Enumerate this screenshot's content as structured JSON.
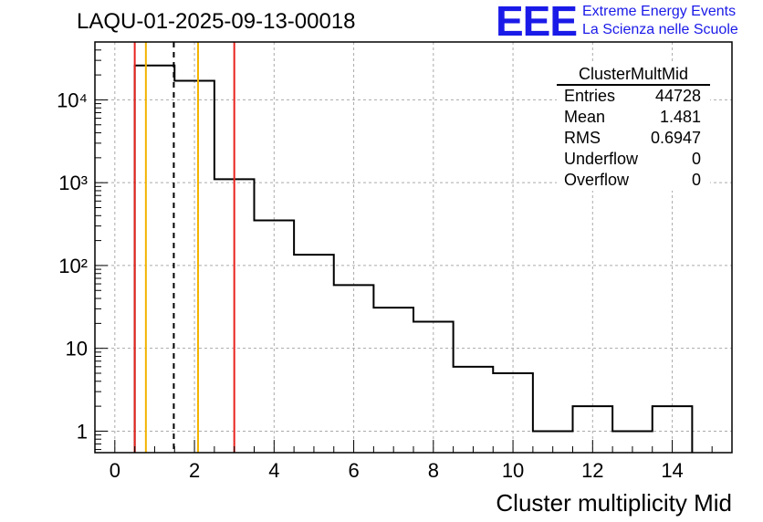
{
  "chart_data": {
    "type": "histogram",
    "title": "LAQU-01-2025-09-13-00018",
    "xlabel": "Cluster multiplicity Mid",
    "ylabel": "",
    "xlim": [
      -0.5,
      15.5
    ],
    "ylim": [
      0.55,
      50000
    ],
    "yscale": "log",
    "grid": true,
    "x_ticks": [
      0,
      2,
      4,
      6,
      8,
      10,
      12,
      14
    ],
    "x_tick_labels": [
      "0",
      "2",
      "4",
      "6",
      "8",
      "10",
      "12",
      "14"
    ],
    "y_ticks": [
      1,
      10,
      100,
      1000,
      10000
    ],
    "y_tick_labels": [
      "1",
      "10",
      "10²",
      "10³",
      "10⁴"
    ],
    "bins": [
      {
        "lo": 0.5,
        "hi": 1.5,
        "count": 26000
      },
      {
        "lo": 1.5,
        "hi": 2.5,
        "count": 17000
      },
      {
        "lo": 2.5,
        "hi": 3.5,
        "count": 1100
      },
      {
        "lo": 3.5,
        "hi": 4.5,
        "count": 350
      },
      {
        "lo": 4.5,
        "hi": 5.5,
        "count": 135
      },
      {
        "lo": 5.5,
        "hi": 6.5,
        "count": 58
      },
      {
        "lo": 6.5,
        "hi": 7.5,
        "count": 31
      },
      {
        "lo": 7.5,
        "hi": 8.5,
        "count": 21
      },
      {
        "lo": 8.5,
        "hi": 9.5,
        "count": 6
      },
      {
        "lo": 9.5,
        "hi": 10.5,
        "count": 5
      },
      {
        "lo": 10.5,
        "hi": 11.5,
        "count": 1
      },
      {
        "lo": 11.5,
        "hi": 12.5,
        "count": 2
      },
      {
        "lo": 12.5,
        "hi": 13.5,
        "count": 1
      },
      {
        "lo": 13.5,
        "hi": 14.5,
        "count": 2
      }
    ],
    "vertical_lines": [
      {
        "name": "red-line-low",
        "x": 0.5,
        "color": "#e8231e",
        "style": "solid"
      },
      {
        "name": "orange-line-low",
        "x": 0.78,
        "color": "#f2b400",
        "style": "solid"
      },
      {
        "name": "mean-line",
        "x": 1.481,
        "color": "#000000",
        "style": "dashed"
      },
      {
        "name": "orange-line-high",
        "x": 2.09,
        "color": "#f2b400",
        "style": "solid"
      },
      {
        "name": "red-line-high",
        "x": 3.0,
        "color": "#e8231e",
        "style": "solid"
      }
    ],
    "stats": {
      "name": "ClusterMultMid",
      "rows": [
        {
          "label": "Entries",
          "value": "44728"
        },
        {
          "label": "Mean",
          "value": "1.481"
        },
        {
          "label": "RMS",
          "value": "0.6947"
        },
        {
          "label": "Underflow",
          "value": "0"
        },
        {
          "label": "Overflow",
          "value": "0"
        }
      ]
    }
  },
  "logo": {
    "mark": "EEE",
    "line1": "Extreme Energy Events",
    "line2": "La Scienza nelle Scuole"
  }
}
